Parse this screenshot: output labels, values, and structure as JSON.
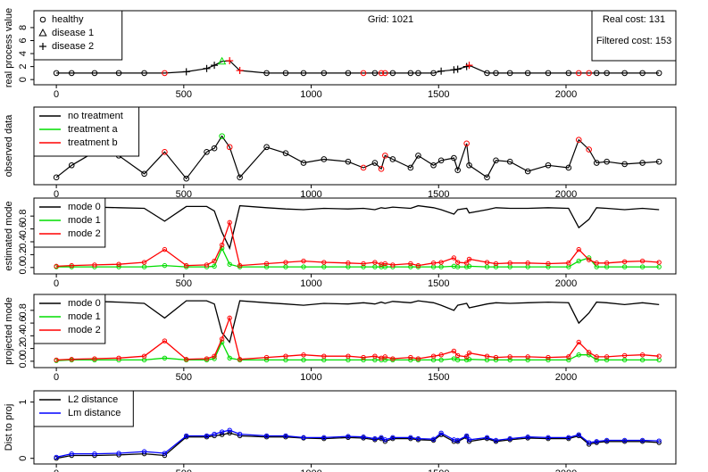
{
  "chart_data": [
    {
      "type": "state-line",
      "y_label": "real process value",
      "x": [
        0,
        60,
        150,
        245,
        345,
        425,
        510,
        590,
        620,
        650,
        680,
        720,
        825,
        900,
        970,
        1050,
        1145,
        1205,
        1250,
        1275,
        1290,
        1320,
        1390,
        1420,
        1480,
        1510,
        1560,
        1575,
        1610,
        1620,
        1690,
        1725,
        1780,
        1850,
        1930,
        2010,
        2050,
        2090,
        2120,
        2160,
        2230,
        2300,
        2365
      ],
      "values": [
        1,
        1,
        1,
        1,
        1,
        1,
        1.2,
        1.7,
        2.2,
        2.8,
        2.9,
        1.4,
        1,
        1,
        1,
        1,
        1,
        1,
        1,
        1,
        1,
        1,
        1,
        1,
        1,
        1.3,
        1.5,
        1.6,
        2.0,
        2.2,
        1,
        1,
        1,
        1,
        1,
        1,
        1,
        1,
        1,
        1,
        1,
        1,
        1
      ],
      "point_states": [
        0,
        0,
        0,
        0,
        0,
        0,
        2,
        2,
        2,
        1,
        2,
        2,
        0,
        0,
        0,
        0,
        0,
        0,
        0,
        0,
        0,
        0,
        0,
        0,
        0,
        2,
        2,
        2,
        2,
        2,
        0,
        0,
        0,
        0,
        0,
        0,
        0,
        0,
        0,
        0,
        0,
        0,
        0
      ],
      "point_colors": [
        "#000",
        "#000",
        "#000",
        "#000",
        "#000",
        "#ff0000",
        "#000",
        "#000",
        "#000",
        "#00dd00",
        "#ff0000",
        "#ff0000",
        "#000",
        "#000",
        "#000",
        "#000",
        "#000",
        "#ff0000",
        "#000",
        "#ff0000",
        "#ff0000",
        "#000",
        "#000",
        "#000",
        "#000",
        "#000",
        "#000",
        "#000",
        "#000",
        "#ff0000",
        "#000",
        "#000",
        "#000",
        "#000",
        "#000",
        "#000",
        "#ff0000",
        "#ff0000",
        "#000",
        "#000",
        "#000",
        "#000",
        "#000"
      ],
      "legend_entries": [
        {
          "name": "healthy",
          "marker": "circle"
        },
        {
          "name": "disease 1",
          "marker": "triangle"
        },
        {
          "name": "disease 2",
          "marker": "plus"
        }
      ],
      "annotation": "Grid: 1021",
      "cost_labels": [
        "Real cost: 131",
        "Filtered cost: 153"
      ],
      "xlim": [
        -88,
        2431
      ],
      "ylim": [
        -0.8,
        10.6
      ],
      "xticks": [
        0,
        500,
        1000,
        1500,
        2000
      ],
      "yticks": [
        0,
        2,
        4,
        6,
        8
      ]
    },
    {
      "type": "treatment-line",
      "y_label": "observed data",
      "x": [
        0,
        60,
        150,
        245,
        345,
        425,
        510,
        590,
        620,
        650,
        680,
        720,
        825,
        900,
        970,
        1050,
        1145,
        1205,
        1250,
        1275,
        1290,
        1320,
        1390,
        1420,
        1480,
        1510,
        1560,
        1575,
        1610,
        1620,
        1690,
        1725,
        1780,
        1850,
        1930,
        2010,
        2050,
        2090,
        2120,
        2160,
        2230,
        2300,
        2365
      ],
      "values": [
        0.2,
        1.2,
        2.3,
        2.0,
        0.5,
        2.3,
        0.1,
        2.3,
        2.6,
        3.6,
        2.7,
        0.2,
        2.7,
        2.2,
        1.4,
        1.7,
        1.5,
        1.0,
        1.4,
        0.9,
        2.0,
        1.7,
        1.0,
        2.0,
        1.2,
        1.6,
        1.8,
        0.8,
        3.0,
        1.2,
        0.2,
        1.6,
        1.5,
        0.7,
        1.2,
        1.0,
        3.3,
        2.5,
        1.4,
        1.5,
        1.3,
        1.4,
        1.5
      ],
      "point_colors": [
        "#000",
        "#000",
        "#000",
        "#000",
        "#000",
        "#ff0000",
        "#000",
        "#000",
        "#000",
        "#00dd00",
        "#ff0000",
        "#000",
        "#000",
        "#000",
        "#000",
        "#000",
        "#000",
        "#ff0000",
        "#000",
        "#ff0000",
        "#ff0000",
        "#000",
        "#000",
        "#000",
        "#000",
        "#000",
        "#000",
        "#000",
        "#ff0000",
        "#000",
        "#000",
        "#000",
        "#000",
        "#000",
        "#000",
        "#000",
        "#ff0000",
        "#ff0000",
        "#000",
        "#000",
        "#000",
        "#000",
        "#000"
      ],
      "series": [
        {
          "name": "no treatment",
          "color": "#000000"
        },
        {
          "name": "treatment a",
          "color": "#00dd00"
        },
        {
          "name": "treatment b",
          "color": "#ff0000"
        }
      ],
      "xlim": [
        -88,
        2431
      ],
      "ylim": [
        -0.4,
        6.0
      ],
      "xticks": [
        0,
        500,
        1000,
        1500,
        2000
      ]
    },
    {
      "type": "line",
      "y_label": "estimated mode",
      "x": [
        0,
        60,
        150,
        245,
        345,
        425,
        510,
        590,
        620,
        650,
        680,
        720,
        825,
        900,
        970,
        1050,
        1145,
        1205,
        1250,
        1275,
        1290,
        1320,
        1390,
        1420,
        1480,
        1510,
        1560,
        1575,
        1610,
        1620,
        1690,
        1725,
        1780,
        1850,
        1930,
        2010,
        2050,
        2090,
        2120,
        2160,
        2230,
        2300,
        2365
      ],
      "series": [
        {
          "name": "mode 0",
          "color": "#000000",
          "markers": false,
          "values": [
            0.95,
            0.95,
            0.94,
            0.93,
            0.92,
            0.72,
            0.95,
            0.95,
            0.88,
            0.55,
            0.3,
            0.96,
            0.93,
            0.91,
            0.9,
            0.92,
            0.91,
            0.92,
            0.9,
            0.93,
            0.92,
            0.94,
            0.92,
            0.96,
            0.93,
            0.9,
            0.83,
            0.9,
            0.92,
            0.85,
            0.9,
            0.93,
            0.92,
            0.92,
            0.93,
            0.92,
            0.62,
            0.75,
            0.93,
            0.92,
            0.9,
            0.92,
            0.9
          ]
        },
        {
          "name": "mode 1",
          "color": "#00dd00",
          "markers": true,
          "values": [
            0.01,
            0.01,
            0.01,
            0.01,
            0.01,
            0.03,
            0.01,
            0.01,
            0.02,
            0.3,
            0.05,
            0.01,
            0.01,
            0.01,
            0.01,
            0.01,
            0.01,
            0.01,
            0.01,
            0.01,
            0.01,
            0.01,
            0.01,
            0.01,
            0.01,
            0.01,
            0.02,
            0.01,
            0.01,
            0.02,
            0.01,
            0.01,
            0.01,
            0.01,
            0.01,
            0.01,
            0.1,
            0.15,
            0.01,
            0.01,
            0.01,
            0.01,
            0.01
          ]
        },
        {
          "name": "mode 2",
          "color": "#ff0000",
          "markers": true,
          "values": [
            0.02,
            0.03,
            0.04,
            0.05,
            0.08,
            0.28,
            0.03,
            0.04,
            0.1,
            0.35,
            0.7,
            0.03,
            0.06,
            0.08,
            0.1,
            0.08,
            0.07,
            0.06,
            0.08,
            0.05,
            0.06,
            0.04,
            0.06,
            0.03,
            0.07,
            0.08,
            0.15,
            0.08,
            0.07,
            0.13,
            0.08,
            0.06,
            0.07,
            0.07,
            0.06,
            0.07,
            0.28,
            0.12,
            0.07,
            0.07,
            0.09,
            0.1,
            0.08
          ]
        }
      ],
      "xlim": [
        -88,
        2431
      ],
      "ylim": [
        -0.1,
        1.08
      ],
      "xticks": [
        0,
        500,
        1000,
        1500,
        2000
      ],
      "yticks": [
        {
          "value": 0,
          "label": "0.0"
        },
        {
          "value": 0.2,
          "label": "0.2"
        },
        {
          "value": 0.4,
          "label": "0.4"
        },
        {
          "value": 0.6,
          "label": "0.6"
        },
        {
          "value": 0.8,
          "label": "0.8"
        }
      ]
    },
    {
      "type": "line",
      "y_label": "projected mode",
      "x": [
        0,
        60,
        150,
        245,
        345,
        425,
        510,
        590,
        620,
        650,
        680,
        720,
        825,
        900,
        970,
        1050,
        1145,
        1205,
        1250,
        1275,
        1290,
        1320,
        1390,
        1420,
        1480,
        1510,
        1560,
        1575,
        1610,
        1620,
        1690,
        1725,
        1780,
        1850,
        1930,
        2010,
        2050,
        2090,
        2120,
        2160,
        2230,
        2300,
        2365
      ],
      "series": [
        {
          "name": "mode 0",
          "color": "#000000",
          "markers": false,
          "values": [
            0.96,
            0.95,
            0.94,
            0.93,
            0.91,
            0.68,
            0.95,
            0.95,
            0.9,
            0.45,
            0.3,
            0.95,
            0.92,
            0.9,
            0.88,
            0.91,
            0.9,
            0.92,
            0.9,
            0.93,
            0.91,
            0.94,
            0.92,
            0.95,
            0.92,
            0.88,
            0.8,
            0.88,
            0.91,
            0.84,
            0.9,
            0.92,
            0.91,
            0.92,
            0.93,
            0.92,
            0.6,
            0.76,
            0.93,
            0.92,
            0.89,
            0.92,
            0.89
          ]
        },
        {
          "name": "mode 1",
          "color": "#00dd00",
          "markers": true,
          "values": [
            0.01,
            0.02,
            0.02,
            0.02,
            0.02,
            0.05,
            0.02,
            0.02,
            0.04,
            0.3,
            0.05,
            0.02,
            0.02,
            0.02,
            0.02,
            0.02,
            0.02,
            0.02,
            0.02,
            0.02,
            0.02,
            0.02,
            0.02,
            0.02,
            0.02,
            0.02,
            0.04,
            0.02,
            0.02,
            0.03,
            0.02,
            0.02,
            0.02,
            0.02,
            0.02,
            0.02,
            0.1,
            0.1,
            0.02,
            0.02,
            0.02,
            0.02,
            0.02
          ]
        },
        {
          "name": "mode 2",
          "color": "#ff0000",
          "markers": true,
          "values": [
            0.02,
            0.03,
            0.04,
            0.05,
            0.08,
            0.32,
            0.03,
            0.04,
            0.08,
            0.35,
            0.68,
            0.03,
            0.06,
            0.08,
            0.1,
            0.08,
            0.08,
            0.06,
            0.08,
            0.05,
            0.07,
            0.04,
            0.06,
            0.04,
            0.08,
            0.1,
            0.16,
            0.09,
            0.07,
            0.13,
            0.08,
            0.06,
            0.07,
            0.07,
            0.06,
            0.07,
            0.3,
            0.14,
            0.07,
            0.07,
            0.09,
            0.1,
            0.08
          ]
        }
      ],
      "xlim": [
        -88,
        2431
      ],
      "ylim": [
        -0.1,
        1.05
      ],
      "xticks": [
        0,
        500,
        1000,
        1500,
        2000
      ],
      "yticks": [
        {
          "value": 0,
          "label": "0.0"
        },
        {
          "value": 0.2,
          "label": "0.2"
        },
        {
          "value": 0.4,
          "label": "0.4"
        },
        {
          "value": 0.6,
          "label": "0.6"
        },
        {
          "value": 0.8,
          "label": "0.8"
        }
      ]
    },
    {
      "type": "line",
      "y_label": "Dist to proj",
      "x": [
        0,
        60,
        150,
        245,
        345,
        425,
        510,
        590,
        620,
        650,
        680,
        720,
        825,
        900,
        970,
        1050,
        1145,
        1205,
        1250,
        1275,
        1290,
        1320,
        1390,
        1420,
        1480,
        1510,
        1560,
        1575,
        1610,
        1620,
        1690,
        1725,
        1780,
        1850,
        1930,
        2010,
        2050,
        2090,
        2120,
        2160,
        2230,
        2300,
        2365
      ],
      "series": [
        {
          "name": "L2 distance",
          "color": "#000000",
          "markers": true,
          "values": [
            0.0,
            0.05,
            0.05,
            0.06,
            0.08,
            0.05,
            0.38,
            0.38,
            0.4,
            0.42,
            0.45,
            0.4,
            0.38,
            0.38,
            0.36,
            0.35,
            0.37,
            0.36,
            0.33,
            0.35,
            0.3,
            0.35,
            0.35,
            0.33,
            0.32,
            0.42,
            0.3,
            0.3,
            0.38,
            0.3,
            0.35,
            0.3,
            0.33,
            0.36,
            0.35,
            0.35,
            0.4,
            0.25,
            0.28,
            0.3,
            0.3,
            0.3,
            0.28
          ]
        },
        {
          "name": "Lm distance",
          "color": "#0000ff",
          "markers": true,
          "values": [
            0.02,
            0.08,
            0.08,
            0.09,
            0.12,
            0.09,
            0.4,
            0.4,
            0.43,
            0.47,
            0.5,
            0.43,
            0.4,
            0.4,
            0.37,
            0.37,
            0.39,
            0.38,
            0.35,
            0.37,
            0.33,
            0.37,
            0.37,
            0.35,
            0.34,
            0.45,
            0.33,
            0.32,
            0.4,
            0.33,
            0.37,
            0.32,
            0.35,
            0.38,
            0.37,
            0.37,
            0.42,
            0.28,
            0.3,
            0.32,
            0.32,
            0.32,
            0.31
          ]
        }
      ],
      "xlim": [
        -88,
        2431
      ],
      "ylim": [
        -0.1,
        1.2
      ],
      "xticks": [
        0,
        500,
        1000,
        1500,
        2000
      ],
      "yticks": [
        0,
        1
      ]
    }
  ]
}
